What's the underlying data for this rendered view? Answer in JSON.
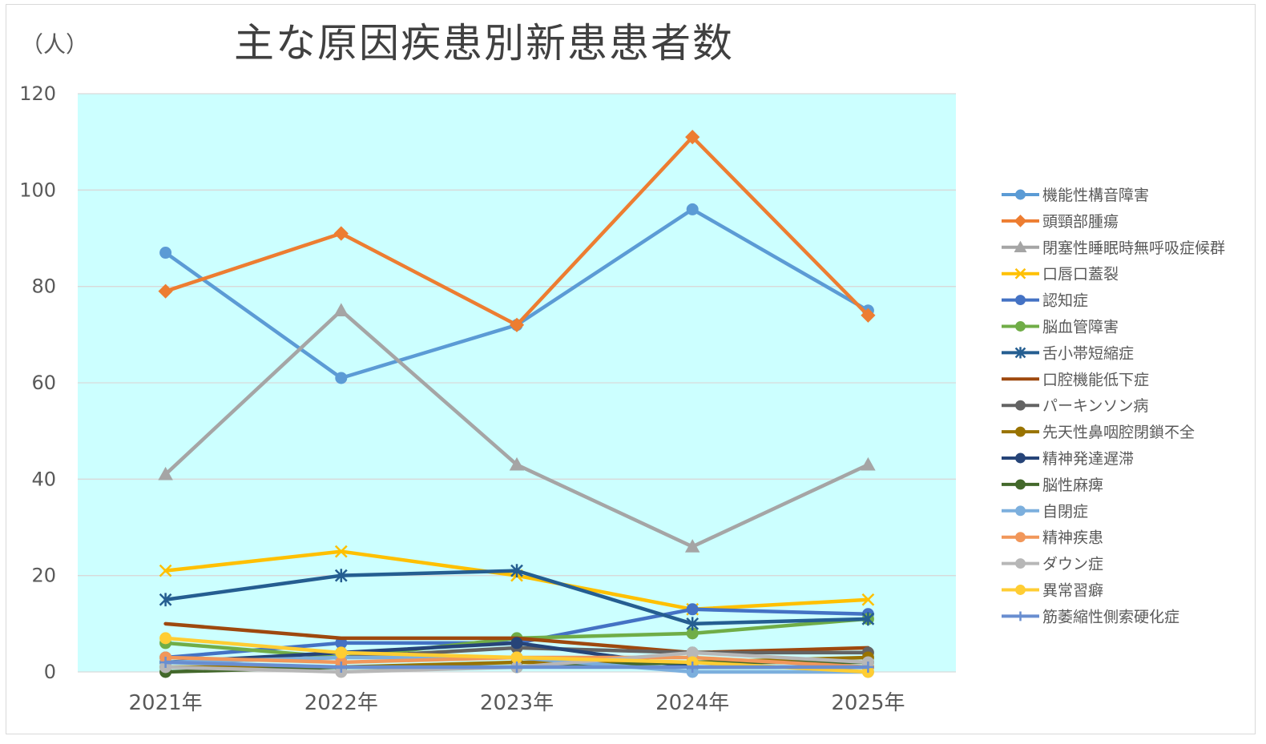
{
  "chart_data": {
    "type": "line",
    "title": "主な原因疾患別新患患者数",
    "ylabel": "（人）",
    "categories": [
      "2021年",
      "2022年",
      "2023年",
      "2024年",
      "2025年"
    ],
    "ylim": [
      0,
      120
    ],
    "yticks": [
      0,
      20,
      40,
      60,
      80,
      100,
      120
    ],
    "grid": true,
    "legend": "right",
    "plot_background": "#CCFFFF",
    "series": [
      {
        "name": "機能性構音障害",
        "color": "#5B9BD5",
        "marker": "circle",
        "values": [
          87,
          61,
          72,
          96,
          75
        ]
      },
      {
        "name": "頭頸部腫瘍",
        "color": "#ED7D31",
        "marker": "diamond",
        "values": [
          79,
          91,
          72,
          111,
          74
        ]
      },
      {
        "name": "閉塞性睡眠時無呼吸症候群",
        "color": "#A5A5A5",
        "marker": "triangle",
        "values": [
          41,
          75,
          43,
          26,
          43
        ]
      },
      {
        "name": "口唇口蓋裂",
        "color": "#FFC000",
        "marker": "x",
        "values": [
          21,
          25,
          20,
          13,
          15
        ]
      },
      {
        "name": "認知症",
        "color": "#4472C4",
        "marker": "circle",
        "values": [
          3,
          6,
          6,
          13,
          12
        ]
      },
      {
        "name": "脳血管障害",
        "color": "#70AD47",
        "marker": "circle",
        "values": [
          6,
          3,
          7,
          8,
          11
        ]
      },
      {
        "name": "舌小帯短縮症",
        "color": "#255E91",
        "marker": "asterisk",
        "values": [
          15,
          20,
          21,
          10,
          11
        ]
      },
      {
        "name": "口腔機能低下症",
        "color": "#9E480E",
        "marker": "none",
        "values": [
          10,
          7,
          7,
          4,
          5
        ]
      },
      {
        "name": "パーキンソン病",
        "color": "#636363",
        "marker": "circle",
        "values": [
          2,
          3,
          5,
          4,
          4
        ]
      },
      {
        "name": "先天性鼻咽腔閉鎖不全",
        "color": "#997300",
        "marker": "circle",
        "values": [
          1,
          1,
          2,
          2,
          3
        ]
      },
      {
        "name": "精神発達遅滞",
        "color": "#264478",
        "marker": "circle",
        "values": [
          2,
          4,
          6,
          1,
          1
        ]
      },
      {
        "name": "脳性麻痺",
        "color": "#43682B",
        "marker": "circle",
        "values": [
          0,
          1,
          1,
          2,
          2
        ]
      },
      {
        "name": "自閉症",
        "color": "#7CAFDD",
        "marker": "circle",
        "values": [
          2,
          3,
          3,
          0,
          0
        ]
      },
      {
        "name": "精神疾患",
        "color": "#F1975A",
        "marker": "circle",
        "values": [
          3,
          2,
          3,
          3,
          1
        ]
      },
      {
        "name": "ダウン症",
        "color": "#B7B7B7",
        "marker": "circle",
        "values": [
          1,
          0,
          1,
          4,
          2
        ]
      },
      {
        "name": "異常習癖",
        "color": "#FFCD33",
        "marker": "circle",
        "values": [
          7,
          4,
          3,
          2,
          0
        ]
      },
      {
        "name": "筋萎縮性側索硬化症",
        "color": "#698ED0",
        "marker": "plus",
        "values": [
          2,
          1,
          1,
          1,
          1
        ]
      }
    ]
  }
}
